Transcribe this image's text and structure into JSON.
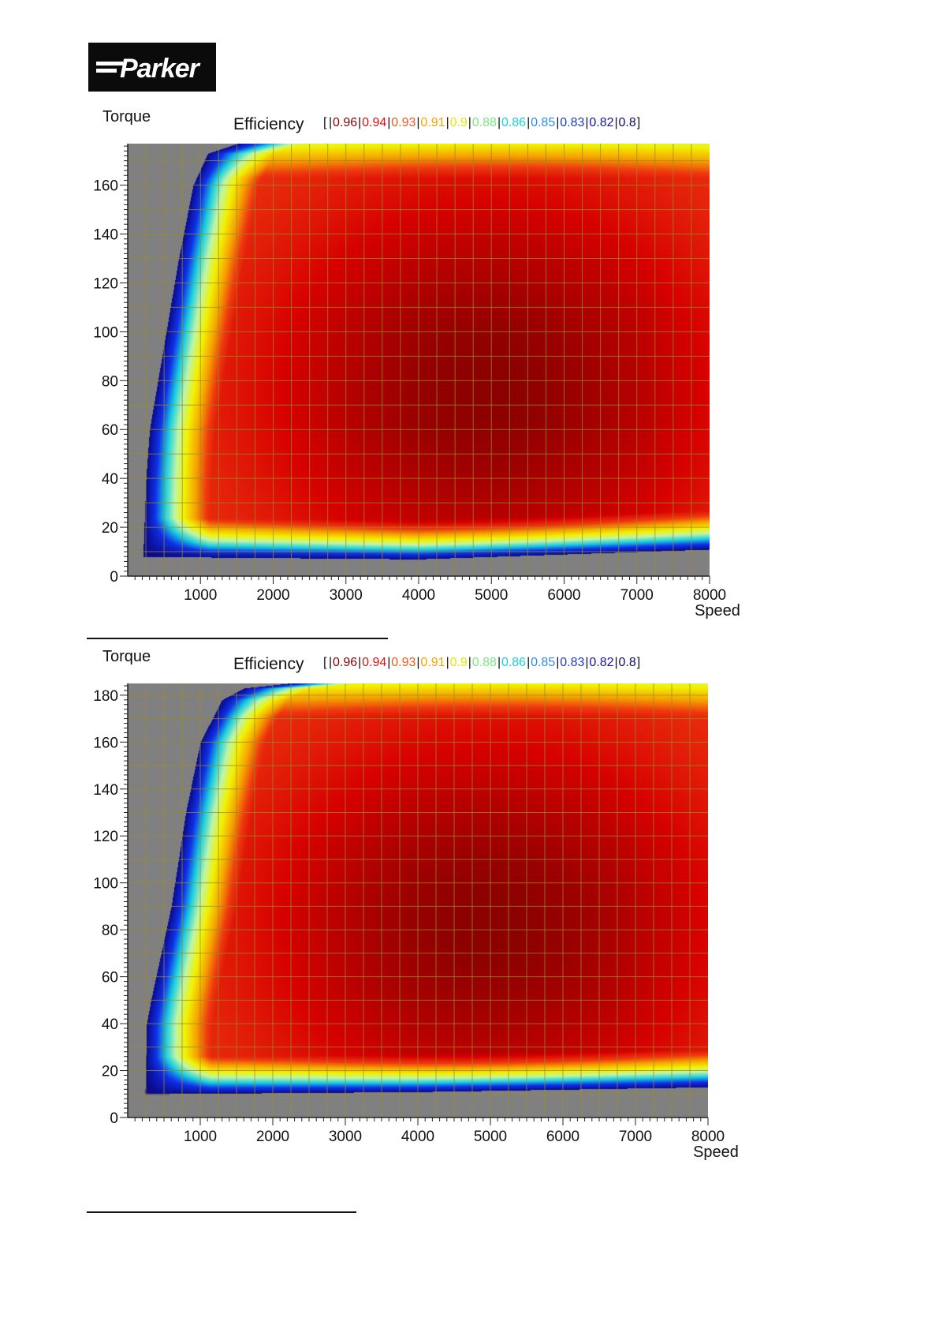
{
  "brand": {
    "logo_text": "Parker",
    "logo_colors": {
      "background": "#0b0b0b",
      "foreground": "#ffffff"
    }
  },
  "chart_data": [
    {
      "type": "heatmap",
      "title": "",
      "xlabel": "Speed",
      "ylabel": "Torque",
      "xlim": [
        0,
        8000
      ],
      "ylim": [
        0,
        177
      ],
      "x_ticks": [
        1000,
        2000,
        3000,
        4000,
        5000,
        6000,
        7000,
        8000
      ],
      "y_ticks": [
        0,
        20,
        40,
        60,
        80,
        100,
        120,
        140,
        160
      ],
      "grid": true,
      "legend": {
        "title": "Efficiency",
        "prefix": "[",
        "placement": "top",
        "levels": [
          {
            "label": "0.96",
            "color": "#8b0000"
          },
          {
            "label": "0.94",
            "color": "#e01010"
          },
          {
            "label": "0.93",
            "color": "#f05a1c"
          },
          {
            "label": "0.91",
            "color": "#f5a400"
          },
          {
            "label": "0.9",
            "color": "#e6e600"
          },
          {
            "label": "0.88",
            "color": "#7ee87e"
          },
          {
            "label": "0.86",
            "color": "#19cfe0"
          },
          {
            "label": "0.85",
            "color": "#2a8cf0"
          },
          {
            "label": "0.83",
            "color": "#1a3ad6"
          },
          {
            "label": "0.82",
            "color": "#1414a8"
          },
          {
            "label": "0.8",
            "color": "#0a0a6e"
          }
        ]
      },
      "peak_efficiency_region": {
        "speed": [
          3000,
          7000
        ],
        "torque": [
          45,
          110
        ]
      },
      "operating_envelope": {
        "min_speed": 200,
        "min_torque": [
          [
            200,
            8
          ],
          [
            4000,
            7
          ],
          [
            8000,
            11
          ]
        ],
        "max_torque": [
          [
            200,
            0
          ],
          [
            250,
            40
          ],
          [
            300,
            60
          ],
          [
            500,
            95
          ],
          [
            700,
            130
          ],
          [
            900,
            160
          ],
          [
            1100,
            173
          ],
          [
            1500,
            177
          ],
          [
            8000,
            177
          ]
        ]
      },
      "colors": {
        "outside": "#808080",
        "grid": "#9a8a2a"
      }
    },
    {
      "type": "heatmap",
      "title": "",
      "xlabel": "Speed",
      "ylabel": "Torque",
      "xlim": [
        0,
        8000
      ],
      "ylim": [
        0,
        185
      ],
      "x_ticks": [
        1000,
        2000,
        3000,
        4000,
        5000,
        6000,
        7000,
        8000
      ],
      "y_ticks": [
        0,
        20,
        40,
        60,
        80,
        100,
        120,
        140,
        160,
        180
      ],
      "grid": true,
      "legend": {
        "title": "Efficiency",
        "prefix": "[",
        "placement": "top",
        "levels": [
          {
            "label": "0.96",
            "color": "#8b0000"
          },
          {
            "label": "0.94",
            "color": "#e01010"
          },
          {
            "label": "0.93",
            "color": "#f05a1c"
          },
          {
            "label": "0.91",
            "color": "#f5a400"
          },
          {
            "label": "0.9",
            "color": "#e6e600"
          },
          {
            "label": "0.88",
            "color": "#7ee87e"
          },
          {
            "label": "0.86",
            "color": "#19cfe0"
          },
          {
            "label": "0.85",
            "color": "#2a8cf0"
          },
          {
            "label": "0.83",
            "color": "#1a3ad6"
          },
          {
            "label": "0.82",
            "color": "#1414a8"
          },
          {
            "label": "0.8",
            "color": "#0a0a6e"
          }
        ]
      },
      "peak_efficiency_region": {
        "speed": [
          3000,
          7000
        ],
        "torque": [
          45,
          120
        ]
      },
      "operating_envelope": {
        "min_speed": 230,
        "min_torque": [
          [
            230,
            10
          ],
          [
            4000,
            11
          ],
          [
            8000,
            13
          ]
        ],
        "max_torque": [
          [
            230,
            0
          ],
          [
            260,
            40
          ],
          [
            320,
            50
          ],
          [
            600,
            90
          ],
          [
            800,
            130
          ],
          [
            1000,
            160
          ],
          [
            1300,
            178
          ],
          [
            1600,
            183
          ],
          [
            2200,
            185
          ],
          [
            8000,
            185
          ]
        ]
      },
      "colors": {
        "outside": "#808080",
        "grid": "#9a8a2a"
      }
    }
  ]
}
